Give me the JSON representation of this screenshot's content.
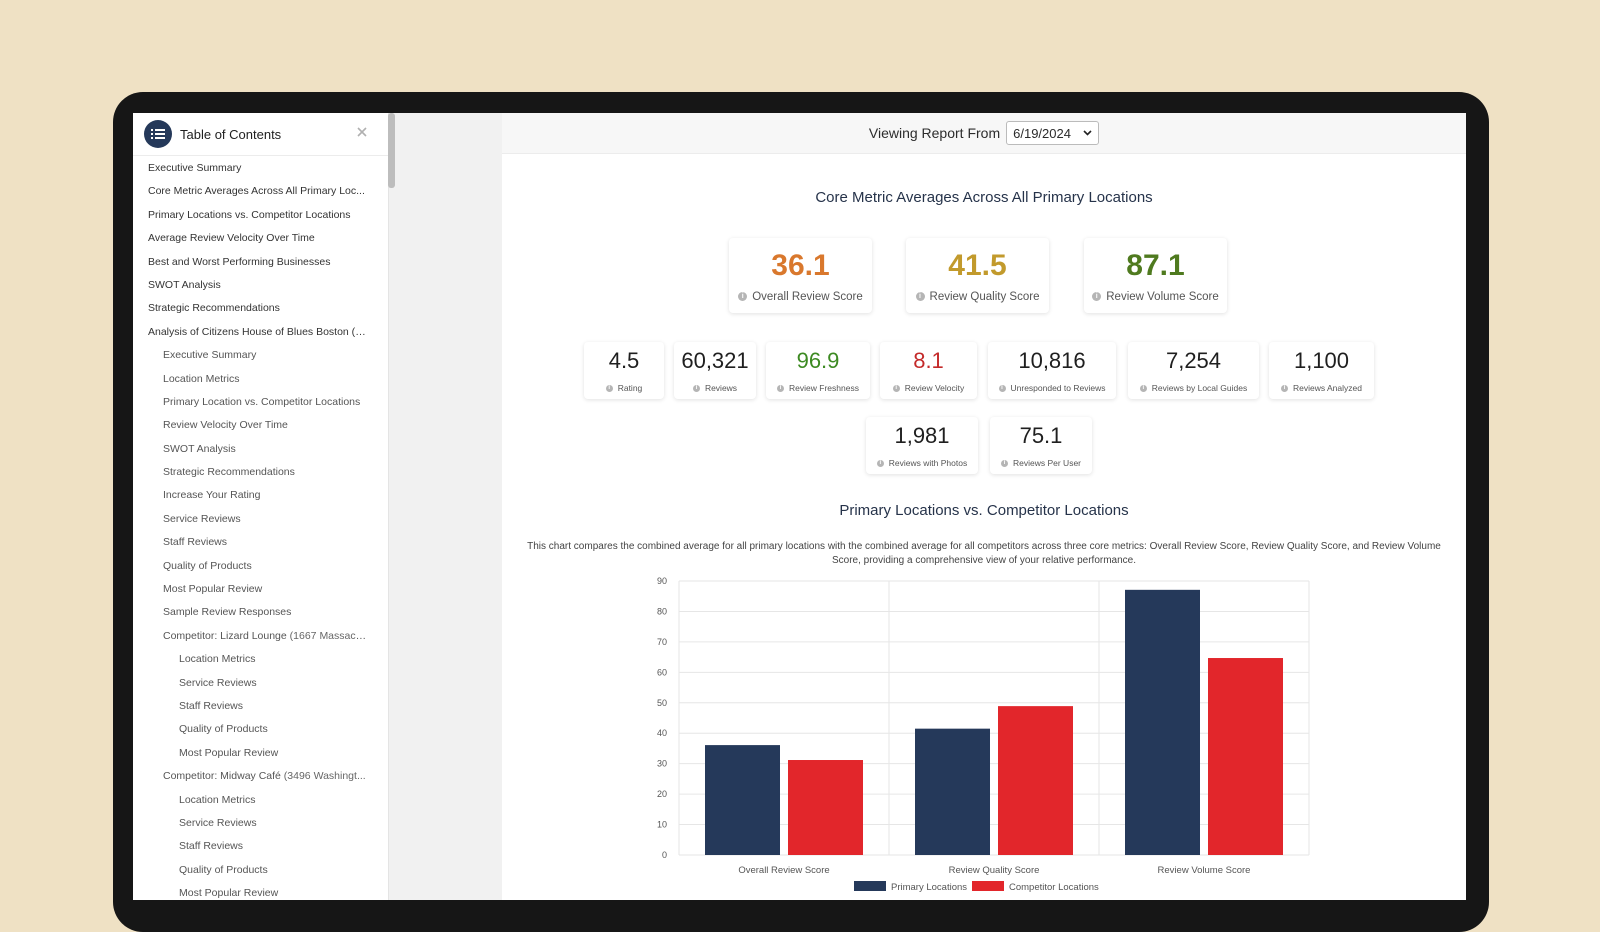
{
  "toc": {
    "title": "Table of Contents",
    "icon": "list-icon",
    "close_icon": "close-icon",
    "items": [
      {
        "label": "Executive Summary",
        "level": 1
      },
      {
        "label": "Core Metric Averages Across All Primary Loc...",
        "level": 1
      },
      {
        "label": "Primary Locations vs. Competitor Locations",
        "level": 1
      },
      {
        "label": "Average Review Velocity Over Time",
        "level": 1
      },
      {
        "label": "Best and Worst Performing Businesses",
        "level": 1
      },
      {
        "label": "SWOT Analysis",
        "level": 1
      },
      {
        "label": "Strategic Recommendations",
        "level": 1
      },
      {
        "label": "Analysis of Citizens House of Blues Boston (1...",
        "level": 1
      },
      {
        "label": "Executive Summary",
        "level": 2
      },
      {
        "label": "Location Metrics",
        "level": 2
      },
      {
        "label": "Primary Location vs. Competitor Locations",
        "level": 2
      },
      {
        "label": "Review Velocity Over Time",
        "level": 2
      },
      {
        "label": "SWOT Analysis",
        "level": 2
      },
      {
        "label": "Strategic Recommendations",
        "level": 2
      },
      {
        "label": "Increase Your Rating",
        "level": 2
      },
      {
        "label": "Service Reviews",
        "level": 2
      },
      {
        "label": "Staff Reviews",
        "level": 2
      },
      {
        "label": "Quality of Products",
        "level": 2
      },
      {
        "label": "Most Popular Review",
        "level": 2
      },
      {
        "label": "Sample Review Responses",
        "level": 2
      },
      {
        "label": "Competitor: Lizard Lounge",
        "sub": " (1667 Massach...",
        "level": 2
      },
      {
        "label": "Location Metrics",
        "level": 3
      },
      {
        "label": "Service Reviews",
        "level": 3
      },
      {
        "label": "Staff Reviews",
        "level": 3
      },
      {
        "label": "Quality of Products",
        "level": 3
      },
      {
        "label": "Most Popular Review",
        "level": 3
      },
      {
        "label": "Competitor: Midway Café",
        "sub": " (3496 Washingt...",
        "level": 2
      },
      {
        "label": "Location Metrics",
        "level": 3
      },
      {
        "label": "Service Reviews",
        "level": 3
      },
      {
        "label": "Staff Reviews",
        "level": 3
      },
      {
        "label": "Quality of Products",
        "level": 3
      },
      {
        "label": "Most Popular Review",
        "level": 3
      }
    ]
  },
  "report": {
    "viewing_label": "Viewing Report From",
    "date_value": "6/19/2024"
  },
  "core": {
    "title": "Core Metric Averages Across All Primary Locations",
    "primary_metrics": [
      {
        "value": "36.1",
        "label": "Overall Review Score",
        "color": "#d9782d"
      },
      {
        "value": "41.5",
        "label": "Review Quality Score",
        "color": "#c29a2c"
      },
      {
        "value": "87.1",
        "label": "Review Volume Score",
        "color": "#4f7a1f"
      }
    ],
    "secondary_metrics": [
      {
        "value": "4.5",
        "label": "Rating",
        "color": "#1f1f1f"
      },
      {
        "value": "60,321",
        "label": "Reviews",
        "color": "#1f1f1f"
      },
      {
        "value": "96.9",
        "label": "Review Freshness",
        "color": "#3d8a22"
      },
      {
        "value": "8.1",
        "label": "Review Velocity",
        "color": "#c42a2a"
      },
      {
        "value": "10,816",
        "label": "Unresponded to Reviews",
        "color": "#1f1f1f"
      },
      {
        "value": "7,254",
        "label": "Reviews by Local Guides",
        "color": "#1f1f1f"
      },
      {
        "value": "1,100",
        "label": "Reviews Analyzed",
        "color": "#1f1f1f"
      },
      {
        "value": "1,981",
        "label": "Reviews with Photos",
        "color": "#1f1f1f"
      },
      {
        "value": "75.1",
        "label": "Reviews Per User",
        "color": "#1f1f1f"
      }
    ]
  },
  "comparison": {
    "title": "Primary Locations vs. Competitor Locations",
    "description": "This chart compares the combined average for all primary locations with the combined average for all competitors across three core metrics: Overall Review Score, Review Quality Score, and Review Volume Score, providing a comprehensive view of your relative performance."
  },
  "chart_data": {
    "type": "bar",
    "categories": [
      "Overall Review Score",
      "Review Quality Score",
      "Review Volume Score"
    ],
    "series": [
      {
        "name": "Primary Locations",
        "values": [
          36.1,
          41.5,
          87.1
        ],
        "color": "#25395a"
      },
      {
        "name": "Competitor Locations",
        "values": [
          31.2,
          48.9,
          64.7
        ],
        "color": "#e2262b"
      }
    ],
    "ylim": [
      0,
      90
    ],
    "yticks": [
      0,
      10,
      20,
      30,
      40,
      50,
      60,
      70,
      80,
      90
    ],
    "grid": true,
    "legend": "bottom"
  }
}
